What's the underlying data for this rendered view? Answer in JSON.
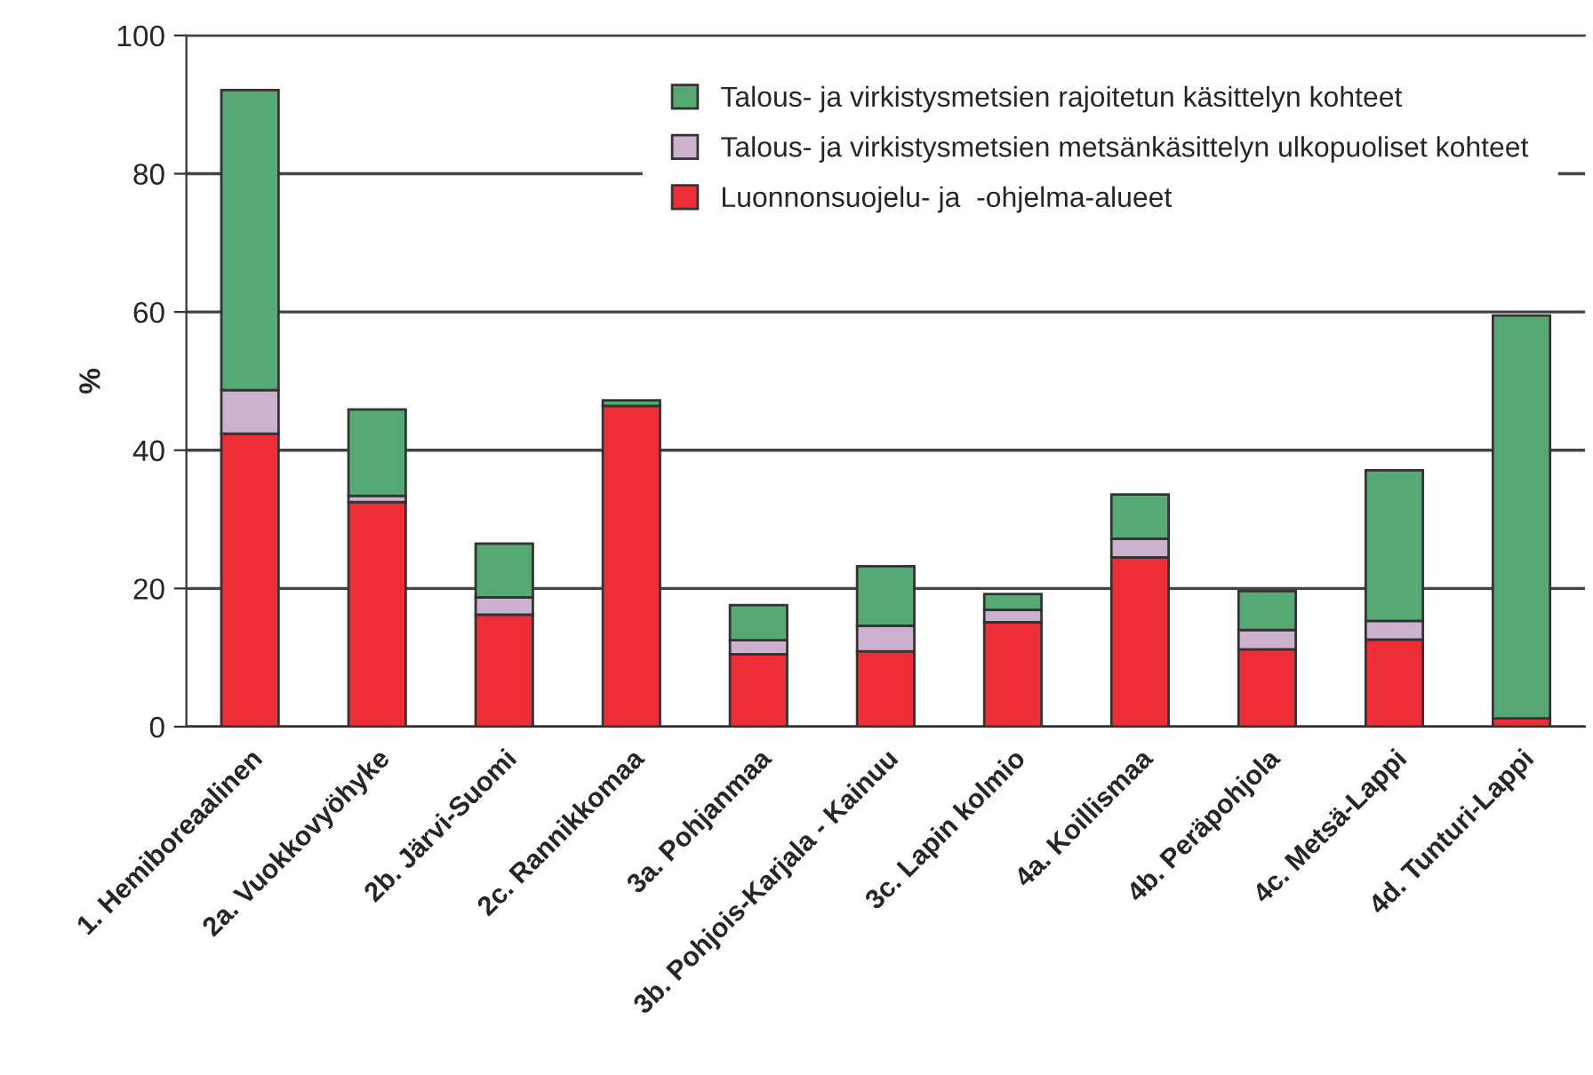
{
  "chart_data": {
    "type": "bar",
    "stacked": true,
    "ylabel": "%",
    "categories": [
      "1. Hemiboreaalinen",
      "2a. Vuokkovyöhyke",
      "2b. Järvi-Suomi",
      "2c. Rannikkomaa",
      "3a. Pohjanmaa",
      "3b. Pohjois-Karjala - Kainuu",
      "3c. Lapin kolmio",
      "4a. Koillismaa",
      "4b. Peräpohjola",
      "4c. Metsä-Lappi",
      "4d. Tunturi-Lappi"
    ],
    "series": [
      {
        "name": "Luonnonsuojelu- ja  -ohjelma-alueet",
        "color": "#ee2e36",
        "values": [
          42.4,
          32.5,
          16.2,
          46.4,
          10.5,
          10.9,
          15.1,
          24.5,
          11.2,
          12.6,
          1.2
        ]
      },
      {
        "name": "Talous- ja virkistysmetsien metsänkäsittelyn ulkopuoliset kohteet",
        "color": "#cdb2cf",
        "values": [
          6.3,
          0.9,
          2.5,
          null,
          2.0,
          3.7,
          1.8,
          2.7,
          2.8,
          2.7,
          null
        ]
      },
      {
        "name": "Talous- ja virkistysmetsien rajoitetun käsittelyn kohteet",
        "color": "#57a973",
        "values": [
          43.4,
          12.5,
          7.8,
          0.8,
          5.1,
          8.6,
          2.3,
          6.4,
          5.6,
          21.8,
          58.3
        ]
      }
    ],
    "ylim": [
      0,
      100
    ],
    "yticks": [
      0,
      20,
      40,
      60,
      80,
      100
    ],
    "grid": "y",
    "legend": "top right"
  }
}
